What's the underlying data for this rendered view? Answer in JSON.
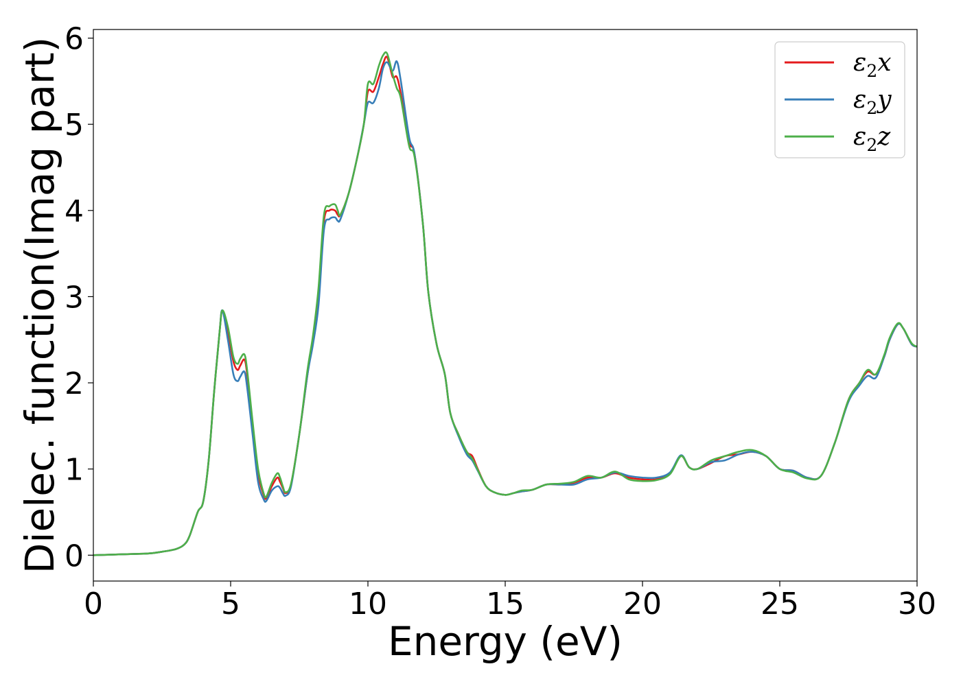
{
  "chart_data": {
    "type": "line",
    "xlabel": "Energy (eV)",
    "ylabel": "Dielec. function(Imag part)",
    "xlim": [
      0,
      30
    ],
    "ylim": [
      -0.3,
      6.1
    ],
    "xticks": [
      0,
      5,
      10,
      15,
      20,
      25,
      30
    ],
    "yticks": [
      0,
      1,
      2,
      3,
      4,
      5,
      6
    ],
    "grid": false,
    "legend_position": "upper-right",
    "series": [
      {
        "name": "ε2x",
        "legend": {
          "base": "ε",
          "sub": "2",
          "var": "x"
        },
        "color": "#e41a1c",
        "x": [
          0,
          1,
          2,
          2.5,
          3,
          3.3,
          3.5,
          3.8,
          4.0,
          4.2,
          4.4,
          4.6,
          4.7,
          4.9,
          5.1,
          5.25,
          5.35,
          5.5,
          5.6,
          5.8,
          6.0,
          6.2,
          6.3,
          6.5,
          6.7,
          6.8,
          6.9,
          7.0,
          7.2,
          7.5,
          7.8,
          8.0,
          8.2,
          8.4,
          8.6,
          8.8,
          8.9,
          9.0,
          9.3,
          9.6,
          9.85,
          10.0,
          10.2,
          10.4,
          10.55,
          10.7,
          10.9,
          11.05,
          11.2,
          11.5,
          11.7,
          12.0,
          12.2,
          12.5,
          12.8,
          13.0,
          13.3,
          13.6,
          13.8,
          14.0,
          14.3,
          14.6,
          15.0,
          15.3,
          15.6,
          16.0,
          16.5,
          17.0,
          17.5,
          18.0,
          18.5,
          19.0,
          19.5,
          20.0,
          20.5,
          21.0,
          21.4,
          21.7,
          22.0,
          22.5,
          23.0,
          23.5,
          24.0,
          24.5,
          25.0,
          25.5,
          26.0,
          26.5,
          27.0,
          27.5,
          27.9,
          28.2,
          28.5,
          28.8,
          29.0,
          29.3,
          29.5,
          29.8,
          30.0
        ],
        "y": [
          0.0,
          0.01,
          0.02,
          0.04,
          0.07,
          0.12,
          0.22,
          0.5,
          0.62,
          1.1,
          1.9,
          2.6,
          2.84,
          2.6,
          2.25,
          2.15,
          2.2,
          2.27,
          2.1,
          1.5,
          0.95,
          0.7,
          0.66,
          0.8,
          0.9,
          0.85,
          0.78,
          0.72,
          0.82,
          1.4,
          2.1,
          2.5,
          3.0,
          3.88,
          4.0,
          4.0,
          3.95,
          3.95,
          4.2,
          4.6,
          5.0,
          5.38,
          5.38,
          5.55,
          5.7,
          5.78,
          5.55,
          5.55,
          5.35,
          4.8,
          4.65,
          3.85,
          3.05,
          2.45,
          2.1,
          1.65,
          1.4,
          1.2,
          1.15,
          1.0,
          0.8,
          0.73,
          0.7,
          0.72,
          0.74,
          0.76,
          0.82,
          0.82,
          0.84,
          0.9,
          0.9,
          0.95,
          0.9,
          0.88,
          0.88,
          0.95,
          1.15,
          1.02,
          1.0,
          1.07,
          1.15,
          1.17,
          1.2,
          1.15,
          1.0,
          0.98,
          0.9,
          0.92,
          1.3,
          1.8,
          2.0,
          2.13,
          2.1,
          2.3,
          2.5,
          2.68,
          2.63,
          2.45,
          2.42
        ]
      },
      {
        "name": "ε2y",
        "legend": {
          "base": "ε",
          "sub": "2",
          "var": "y"
        },
        "color": "#377eb8",
        "x": [
          0,
          1,
          2,
          2.5,
          3,
          3.3,
          3.5,
          3.8,
          4.0,
          4.2,
          4.4,
          4.6,
          4.7,
          4.9,
          5.1,
          5.25,
          5.35,
          5.5,
          5.6,
          5.8,
          6.0,
          6.2,
          6.3,
          6.5,
          6.7,
          6.8,
          6.9,
          7.0,
          7.2,
          7.5,
          7.8,
          8.0,
          8.2,
          8.4,
          8.6,
          8.8,
          8.9,
          9.0,
          9.3,
          9.6,
          9.85,
          10.0,
          10.2,
          10.4,
          10.55,
          10.7,
          10.9,
          11.05,
          11.2,
          11.5,
          11.7,
          12.0,
          12.2,
          12.5,
          12.8,
          13.0,
          13.3,
          13.6,
          13.8,
          14.0,
          14.3,
          14.6,
          15.0,
          15.3,
          15.6,
          16.0,
          16.5,
          17.0,
          17.5,
          18.0,
          18.5,
          19.0,
          19.5,
          20.0,
          20.5,
          21.0,
          21.4,
          21.7,
          22.0,
          22.5,
          23.0,
          23.5,
          24.0,
          24.5,
          25.0,
          25.5,
          26.0,
          26.5,
          27.0,
          27.5,
          27.9,
          28.2,
          28.5,
          28.8,
          29.0,
          29.3,
          29.5,
          29.8,
          30.0
        ],
        "y": [
          0.0,
          0.01,
          0.02,
          0.04,
          0.07,
          0.12,
          0.22,
          0.5,
          0.62,
          1.1,
          1.9,
          2.6,
          2.84,
          2.5,
          2.1,
          2.02,
          2.07,
          2.13,
          1.95,
          1.4,
          0.85,
          0.65,
          0.63,
          0.75,
          0.8,
          0.78,
          0.72,
          0.69,
          0.8,
          1.4,
          2.1,
          2.45,
          2.9,
          3.78,
          3.9,
          3.92,
          3.88,
          3.9,
          4.2,
          4.6,
          5.0,
          5.25,
          5.25,
          5.42,
          5.65,
          5.72,
          5.62,
          5.73,
          5.5,
          4.85,
          4.65,
          3.85,
          3.05,
          2.45,
          2.1,
          1.65,
          1.38,
          1.17,
          1.1,
          0.98,
          0.8,
          0.73,
          0.7,
          0.72,
          0.74,
          0.76,
          0.82,
          0.82,
          0.82,
          0.88,
          0.9,
          0.96,
          0.92,
          0.9,
          0.9,
          0.96,
          1.16,
          1.02,
          1.0,
          1.08,
          1.1,
          1.17,
          1.2,
          1.15,
          1.0,
          0.98,
          0.9,
          0.92,
          1.3,
          1.78,
          1.97,
          2.08,
          2.06,
          2.3,
          2.5,
          2.68,
          2.63,
          2.45,
          2.42
        ]
      },
      {
        "name": "ε2z",
        "legend": {
          "base": "ε",
          "sub": "2",
          "var": "z"
        },
        "color": "#4daf4a",
        "x": [
          0,
          1,
          2,
          2.5,
          3,
          3.3,
          3.5,
          3.8,
          4.0,
          4.2,
          4.4,
          4.6,
          4.7,
          4.9,
          5.1,
          5.25,
          5.35,
          5.5,
          5.6,
          5.8,
          6.0,
          6.2,
          6.3,
          6.5,
          6.7,
          6.8,
          6.9,
          7.0,
          7.2,
          7.5,
          7.8,
          8.0,
          8.2,
          8.4,
          8.6,
          8.8,
          8.9,
          9.0,
          9.3,
          9.6,
          9.85,
          10.0,
          10.2,
          10.4,
          10.55,
          10.7,
          10.9,
          11.05,
          11.2,
          11.5,
          11.7,
          12.0,
          12.2,
          12.5,
          12.8,
          13.0,
          13.3,
          13.6,
          13.8,
          14.0,
          14.3,
          14.6,
          15.0,
          15.3,
          15.6,
          16.0,
          16.5,
          17.0,
          17.5,
          18.0,
          18.5,
          19.0,
          19.5,
          20.0,
          20.5,
          21.0,
          21.4,
          21.7,
          22.0,
          22.5,
          23.0,
          23.5,
          24.0,
          24.5,
          25.0,
          25.5,
          26.0,
          26.5,
          27.0,
          27.5,
          27.9,
          28.2,
          28.5,
          28.8,
          29.0,
          29.3,
          29.5,
          29.8,
          30.0
        ],
        "y": [
          0.0,
          0.01,
          0.02,
          0.04,
          0.07,
          0.12,
          0.22,
          0.5,
          0.62,
          1.1,
          1.9,
          2.6,
          2.84,
          2.65,
          2.3,
          2.22,
          2.28,
          2.33,
          2.15,
          1.55,
          1.0,
          0.72,
          0.68,
          0.84,
          0.95,
          0.9,
          0.8,
          0.73,
          0.83,
          1.4,
          2.15,
          2.55,
          3.1,
          3.95,
          4.05,
          4.07,
          4.0,
          3.95,
          4.2,
          4.6,
          5.0,
          5.47,
          5.47,
          5.68,
          5.8,
          5.82,
          5.58,
          5.42,
          5.3,
          4.75,
          4.62,
          3.85,
          3.05,
          2.45,
          2.1,
          1.65,
          1.4,
          1.2,
          1.12,
          0.99,
          0.8,
          0.73,
          0.7,
          0.72,
          0.75,
          0.76,
          0.82,
          0.83,
          0.85,
          0.92,
          0.9,
          0.97,
          0.88,
          0.86,
          0.87,
          0.94,
          1.15,
          1.02,
          1.0,
          1.1,
          1.15,
          1.2,
          1.22,
          1.15,
          1.0,
          0.96,
          0.89,
          0.92,
          1.3,
          1.8,
          2.0,
          2.15,
          2.1,
          2.32,
          2.52,
          2.69,
          2.63,
          2.46,
          2.42
        ]
      }
    ]
  }
}
